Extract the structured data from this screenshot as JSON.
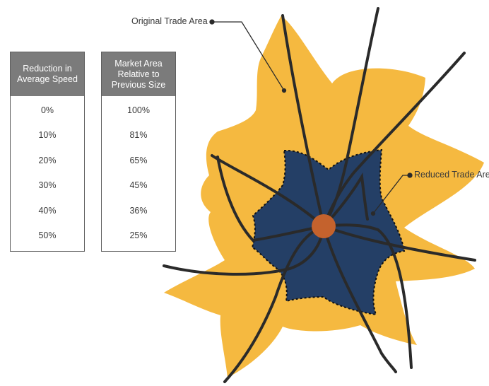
{
  "table_left": {
    "header": "Reduction in Average Speed",
    "rows": [
      "0%",
      "10%",
      "20%",
      "30%",
      "40%",
      "50%"
    ]
  },
  "table_right": {
    "header": "Market Area Relative to Previous Size",
    "rows": [
      "100%",
      "81%",
      "65%",
      "45%",
      "36%",
      "25%"
    ]
  },
  "labels": {
    "original": "Original Trade Area",
    "reduced": "Reduced Trade Area"
  },
  "colors": {
    "original_area": "#f5b940",
    "reduced_area": "#243f66",
    "center": "#c4622d",
    "roads": "#2a2a2a",
    "table_header": "#7b7b7b"
  }
}
